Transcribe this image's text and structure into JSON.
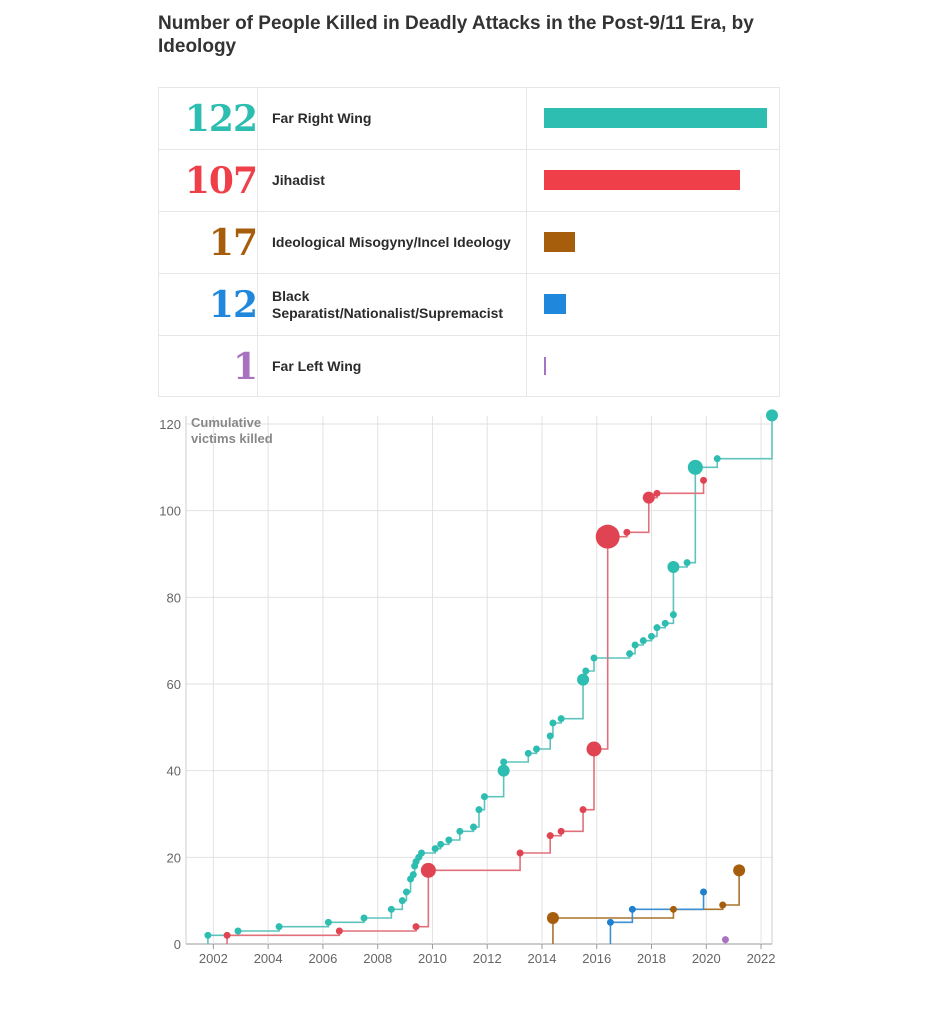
{
  "title": "Number of People Killed in Deadly Attacks in the Post-9/11 Era, by Ideology",
  "summary": [
    {
      "count": "122",
      "value": 122,
      "label": "Far Right Wing",
      "color": "#2dbdb1"
    },
    {
      "count": "107",
      "value": 107,
      "label": "Jihadist",
      "color": "#ef404a"
    },
    {
      "count": "17",
      "value": 17,
      "label": "Ideological Misogyny/Incel Ideology",
      "color": "#a65e0c"
    },
    {
      "count": "12",
      "value": 12,
      "label": "Black Separatist/Nationalist/Supremacist",
      "color": "#1f88dc"
    },
    {
      "count": "1",
      "value": 1,
      "label": "Far Left Wing",
      "color": "#a772c0"
    }
  ],
  "chart_data": {
    "type": "line",
    "step": true,
    "ylabel": "Cumulative victims killed",
    "xlim": [
      2001,
      2022.4
    ],
    "ylim": [
      0,
      120
    ],
    "xticks": [
      2002,
      2004,
      2006,
      2008,
      2010,
      2012,
      2014,
      2016,
      2018,
      2020,
      2022
    ],
    "yticks": [
      0,
      20,
      40,
      60,
      80,
      100,
      120
    ],
    "series": [
      {
        "name": "Far Right Wing",
        "color": "#2dbdb1",
        "line_color": "#5fc3bd",
        "x": [
          2001.8,
          2002.9,
          2004.4,
          2006.2,
          2007.5,
          2008.5,
          2008.9,
          2009.05,
          2009.2,
          2009.3,
          2009.35,
          2009.4,
          2009.5,
          2009.6,
          2010.1,
          2010.3,
          2010.6,
          2011.0,
          2011.5,
          2011.7,
          2011.9,
          2012.6,
          2012.6,
          2013.5,
          2013.8,
          2014.3,
          2014.4,
          2014.7,
          2015.5,
          2015.6,
          2015.9,
          2017.2,
          2017.4,
          2017.7,
          2018.0,
          2018.2,
          2018.5,
          2018.8,
          2018.8,
          2019.3,
          2019.6,
          2020.4,
          2022.4
        ],
        "y": [
          2,
          3,
          4,
          5,
          6,
          8,
          10,
          12,
          15,
          16,
          18,
          19,
          20,
          21,
          22,
          23,
          24,
          26,
          27,
          31,
          34,
          40,
          42,
          44,
          45,
          48,
          51,
          52,
          61,
          63,
          66,
          67,
          69,
          70,
          71,
          73,
          74,
          76,
          87,
          88,
          110,
          112,
          122
        ],
        "sizes": [
          1,
          1,
          1,
          1,
          1,
          1,
          1,
          1,
          1,
          1,
          1,
          1,
          1,
          1,
          1,
          1,
          1,
          1,
          1,
          1,
          1,
          2,
          1,
          1,
          1,
          1,
          1,
          1,
          2,
          1,
          1,
          1,
          1,
          1,
          1,
          1,
          1,
          1,
          2,
          1,
          3,
          1,
          2
        ]
      },
      {
        "name": "Jihadist",
        "color": "#e04452",
        "line_color": "#e2707b",
        "x": [
          2002.5,
          2006.6,
          2009.4,
          2009.85,
          2013.2,
          2014.3,
          2014.7,
          2015.5,
          2015.9,
          2016.4,
          2017.1,
          2017.9,
          2018.2,
          2019.9
        ],
        "y": [
          2,
          3,
          4,
          17,
          21,
          25,
          26,
          31,
          45,
          94,
          95,
          103,
          104,
          107
        ],
        "sizes": [
          1,
          1,
          1,
          3,
          1,
          1,
          1,
          1,
          3,
          5,
          1,
          2,
          1,
          1
        ]
      },
      {
        "name": "Ideological Misogyny/Incel Ideology",
        "color": "#a65e0c",
        "line_color": "#a8742e",
        "x": [
          2014.4,
          2018.8,
          2020.6,
          2021.2
        ],
        "y": [
          6,
          8,
          9,
          17
        ],
        "sizes": [
          2,
          1,
          1,
          2
        ]
      },
      {
        "name": "Black Separatist/Nationalist/Supremacist",
        "color": "#1f7fd0",
        "line_color": "#3c8fd0",
        "x": [
          2016.5,
          2017.3,
          2019.9
        ],
        "y": [
          5,
          8,
          12
        ],
        "sizes": [
          1,
          1,
          1
        ]
      },
      {
        "name": "Far Left Wing",
        "color": "#a772c0",
        "line_color": "#b490cf",
        "x": [
          2020.7
        ],
        "y": [
          1
        ],
        "sizes": [
          1
        ]
      }
    ]
  }
}
